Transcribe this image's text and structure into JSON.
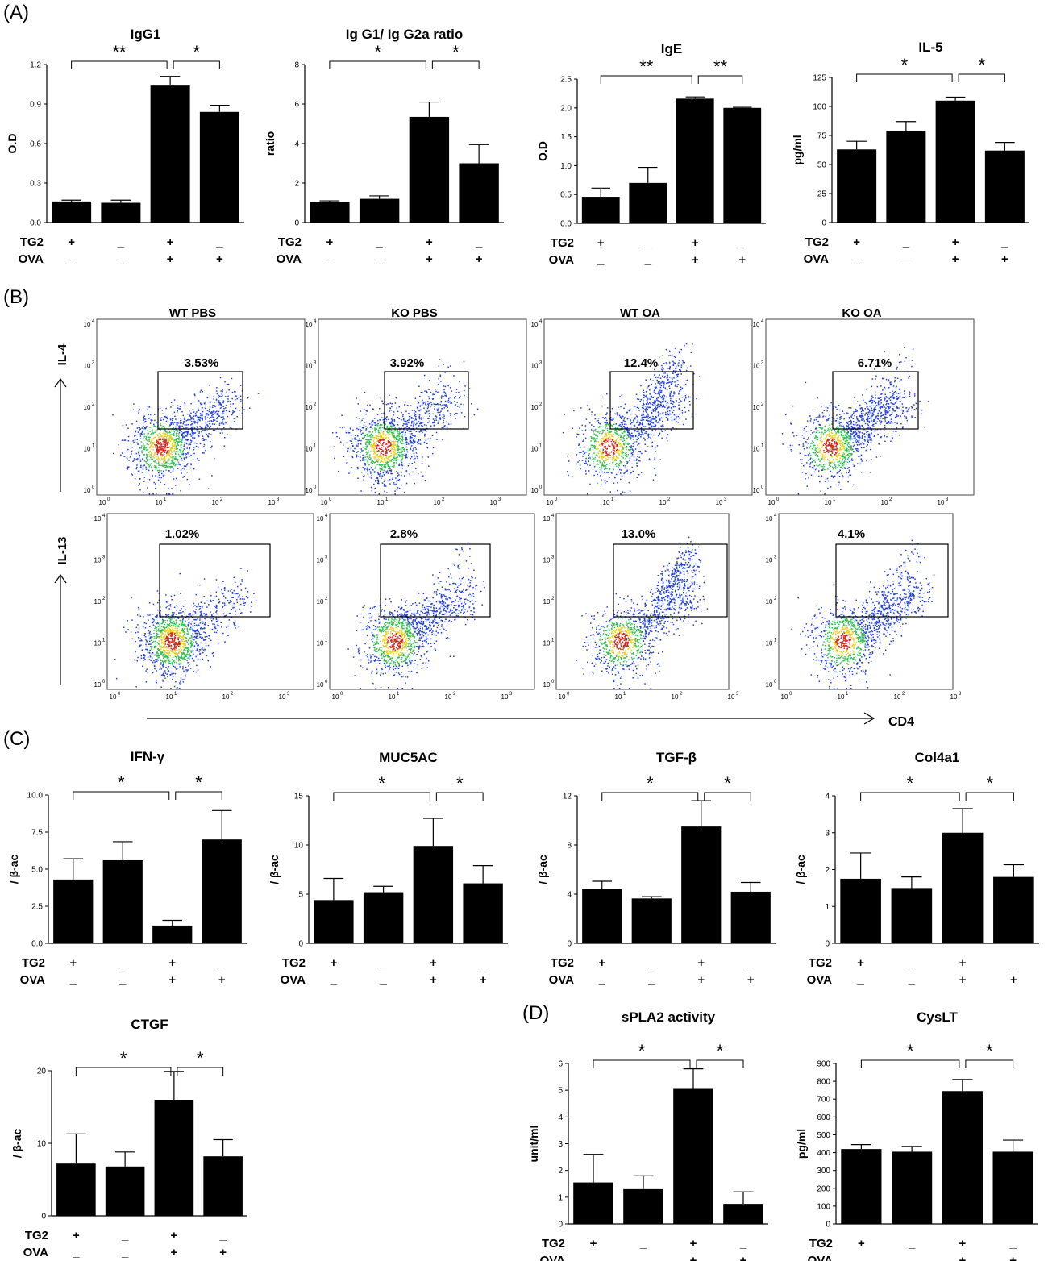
{
  "panels": {
    "A": "(A)",
    "B": "(B)",
    "C": "(C)",
    "D": "(D)"
  },
  "conditions": {
    "row_labels": [
      "TG2",
      "OVA"
    ],
    "TG2": [
      "+",
      "_",
      "+",
      "_"
    ],
    "OVA": [
      "_",
      "_",
      "+",
      "+"
    ]
  },
  "chart_data": [
    {
      "id": "igg1",
      "type": "bar",
      "title": "IgG1",
      "ylabel": "O.D",
      "ylim": [
        0,
        1.2
      ],
      "yticks": [
        "0.0",
        "0.3",
        "0.6",
        "0.9",
        "1.2"
      ],
      "tick_values": [
        0,
        0.3,
        0.6,
        0.9,
        1.2
      ],
      "values": [
        0.16,
        0.15,
        1.04,
        0.84
      ],
      "errors": [
        0.01,
        0.02,
        0.07,
        0.05
      ],
      "significance": [
        {
          "from": 0,
          "to": 2,
          "label": "**"
        },
        {
          "from": 2,
          "to": 3,
          "label": "*"
        }
      ]
    },
    {
      "id": "ratio",
      "type": "bar",
      "title": "Ig G1/ Ig G2a ratio",
      "ylabel": "ratio",
      "ylim": [
        0,
        8
      ],
      "yticks": [
        "0",
        "2",
        "4",
        "6",
        "8"
      ],
      "tick_values": [
        0,
        2,
        4,
        6,
        8
      ],
      "values": [
        1.05,
        1.2,
        5.35,
        3.0
      ],
      "errors": [
        0.05,
        0.15,
        0.75,
        0.95
      ],
      "significance": [
        {
          "from": 0,
          "to": 2,
          "label": "*"
        },
        {
          "from": 2,
          "to": 3,
          "label": "*"
        }
      ]
    },
    {
      "id": "ige",
      "type": "bar",
      "title": "IgE",
      "ylabel": "O.D",
      "ylim": [
        0,
        2.5
      ],
      "yticks": [
        "0.0",
        "0.5",
        "1.0",
        "1.5",
        "2.0",
        "2.5"
      ],
      "tick_values": [
        0,
        0.5,
        1,
        1.5,
        2,
        2.5
      ],
      "values": [
        0.46,
        0.7,
        2.16,
        2.0
      ],
      "errors": [
        0.15,
        0.27,
        0.03,
        0.01
      ],
      "significance": [
        {
          "from": 0,
          "to": 2,
          "label": "**"
        },
        {
          "from": 2,
          "to": 3,
          "label": "**"
        }
      ]
    },
    {
      "id": "il5",
      "type": "bar",
      "title": "IL-5",
      "ylabel": "pg/ml",
      "ylim": [
        0,
        125
      ],
      "yticks": [
        "0",
        "25",
        "50",
        "75",
        "100",
        "125"
      ],
      "tick_values": [
        0,
        25,
        50,
        75,
        100,
        125
      ],
      "values": [
        63,
        79,
        105,
        62
      ],
      "errors": [
        7,
        8,
        3,
        7
      ],
      "significance": [
        {
          "from": 0,
          "to": 2,
          "label": "*"
        },
        {
          "from": 2,
          "to": 3,
          "label": "*"
        }
      ]
    },
    {
      "id": "ifng",
      "type": "bar",
      "title": "IFN-γ",
      "ylabel": "/ β-ac",
      "ylim": [
        0,
        10
      ],
      "yticks": [
        "0.0",
        "2.5",
        "5.0",
        "7.5",
        "10.0"
      ],
      "tick_values": [
        0,
        2.5,
        5,
        7.5,
        10
      ],
      "values": [
        4.3,
        5.6,
        1.2,
        7.0
      ],
      "errors": [
        1.4,
        1.25,
        0.35,
        1.95
      ],
      "significance": [
        {
          "from": 0,
          "to": 2,
          "label": "*"
        },
        {
          "from": 2,
          "to": 3,
          "label": "*"
        }
      ]
    },
    {
      "id": "muc5ac",
      "type": "bar",
      "title": "MUC5AC",
      "ylabel": "/ β-ac",
      "ylim": [
        0,
        15
      ],
      "yticks": [
        "0",
        "5",
        "10",
        "15"
      ],
      "tick_values": [
        0,
        5,
        10,
        15
      ],
      "values": [
        4.4,
        5.2,
        9.9,
        6.1
      ],
      "errors": [
        2.2,
        0.6,
        2.8,
        1.8
      ],
      "significance": [
        {
          "from": 0,
          "to": 2,
          "label": "*"
        },
        {
          "from": 2,
          "to": 3,
          "label": "*"
        }
      ]
    },
    {
      "id": "tgfb",
      "type": "bar",
      "title": "TGF-β",
      "ylabel": "/ β-ac",
      "ylim": [
        0,
        12
      ],
      "yticks": [
        "0",
        "4",
        "8",
        "12"
      ],
      "tick_values": [
        0,
        4,
        8,
        12
      ],
      "values": [
        4.4,
        3.65,
        9.5,
        4.2
      ],
      "errors": [
        0.65,
        0.15,
        2.1,
        0.75
      ],
      "significance": [
        {
          "from": 0,
          "to": 2,
          "label": "*"
        },
        {
          "from": 2,
          "to": 3,
          "label": "*"
        }
      ]
    },
    {
      "id": "col4a1",
      "type": "bar",
      "title": "Col4a1",
      "ylabel": "/ β-ac",
      "ylim": [
        0,
        4
      ],
      "yticks": [
        "0",
        "1",
        "2",
        "3",
        "4"
      ],
      "tick_values": [
        0,
        1,
        2,
        3,
        4
      ],
      "values": [
        1.75,
        1.5,
        3.0,
        1.8
      ],
      "errors": [
        0.7,
        0.3,
        0.65,
        0.33
      ],
      "significance": [
        {
          "from": 0,
          "to": 2,
          "label": "*"
        },
        {
          "from": 2,
          "to": 3,
          "label": "*"
        }
      ]
    },
    {
      "id": "ctgf",
      "type": "bar",
      "title": "CTGF",
      "ylabel": "/ β-ac",
      "ylim": [
        0,
        20
      ],
      "yticks": [
        "0",
        "10",
        "20"
      ],
      "tick_values": [
        0,
        10,
        20
      ],
      "values": [
        7.2,
        6.8,
        16.0,
        8.2
      ],
      "errors": [
        4.1,
        2.0,
        3.9,
        2.3
      ],
      "significance": [
        {
          "from": 0,
          "to": 2,
          "label": "*"
        },
        {
          "from": 2,
          "to": 3,
          "label": "*"
        }
      ]
    },
    {
      "id": "spla2",
      "type": "bar",
      "title": "sPLA2 activity",
      "ylabel": "unit/ml",
      "ylim": [
        0,
        6
      ],
      "yticks": [
        "0",
        "1",
        "2",
        "3",
        "4",
        "5",
        "6"
      ],
      "tick_values": [
        0,
        1,
        2,
        3,
        4,
        5,
        6
      ],
      "values": [
        1.55,
        1.3,
        5.05,
        0.75
      ],
      "errors": [
        1.05,
        0.5,
        0.75,
        0.45
      ],
      "significance": [
        {
          "from": 0,
          "to": 2,
          "label": "*"
        },
        {
          "from": 2,
          "to": 3,
          "label": "*"
        }
      ]
    },
    {
      "id": "cyslt",
      "type": "bar",
      "title": "CysLT",
      "ylabel": "pg/ml",
      "ylim": [
        0,
        900
      ],
      "yticks": [
        "0",
        "100",
        "200",
        "300",
        "400",
        "500",
        "600",
        "700",
        "800",
        "900"
      ],
      "tick_values": [
        0,
        100,
        200,
        300,
        400,
        500,
        600,
        700,
        800,
        900
      ],
      "values": [
        420,
        405,
        745,
        405
      ],
      "errors": [
        25,
        30,
        65,
        65
      ],
      "significance": [
        {
          "from": 0,
          "to": 2,
          "label": "*"
        },
        {
          "from": 2,
          "to": 3,
          "label": "*"
        }
      ]
    }
  ],
  "flow": {
    "titles": [
      "WT PBS",
      "KO PBS",
      "WT OA",
      "KO OA"
    ],
    "row_labels": [
      "IL-4",
      "IL-13"
    ],
    "x_axis_label": "CD4",
    "decade_labels": [
      "10",
      "0",
      "1",
      "2",
      "3",
      "4"
    ],
    "percentages": [
      [
        "3.53%",
        "3.92%",
        "12.4%",
        "6.71%"
      ],
      [
        "1.02%",
        "2.8%",
        "13.0%",
        "4.1%"
      ]
    ],
    "colors": {
      "low": "#1f3fe0",
      "mid": "#2fbf4f",
      "high": "#e8d020",
      "peak": "#d2281e"
    }
  }
}
